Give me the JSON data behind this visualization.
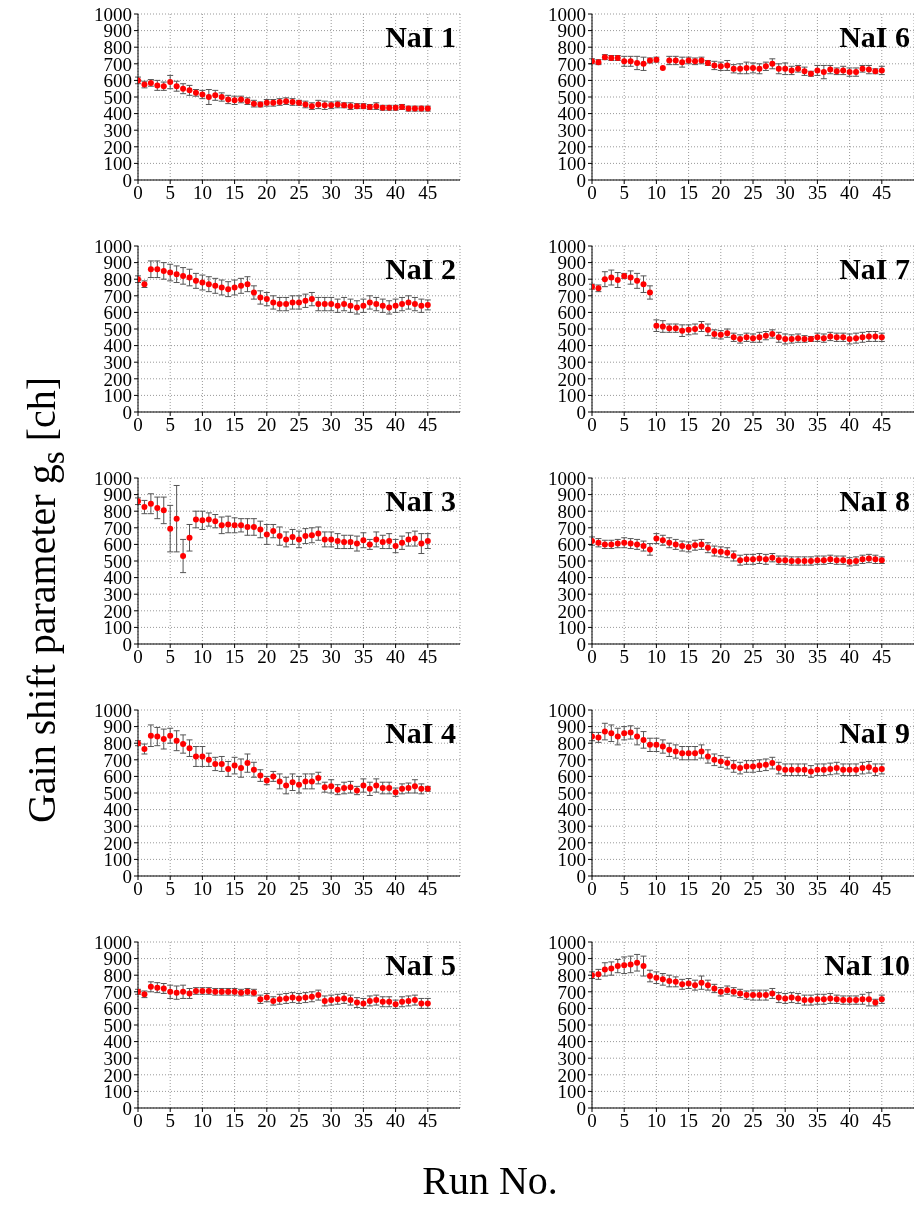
{
  "chart_data": [
    {
      "type": "scatter",
      "title": "NaI 1",
      "ylabel": "Gain shift parameter g$_{s}$ [ch]",
      "xlabel": "Run No.",
      "x": [
        0,
        1,
        2,
        3,
        4,
        5,
        6,
        7,
        8,
        9,
        10,
        11,
        12,
        13,
        14,
        15,
        16,
        17,
        18,
        19,
        20,
        21,
        22,
        23,
        24,
        25,
        26,
        27,
        28,
        29,
        30,
        31,
        32,
        33,
        34,
        35,
        36,
        37,
        38,
        39,
        40,
        41,
        42,
        43,
        44,
        45
      ],
      "xlim": [
        0,
        50
      ],
      "xticks": [
        0,
        5,
        10,
        15,
        20,
        25,
        30,
        35,
        40,
        45
      ],
      "ylim": [
        0,
        1000
      ],
      "yticks": [
        0,
        100,
        200,
        300,
        400,
        500,
        600,
        700,
        800,
        900,
        1000
      ],
      "grid": true,
      "marker": "circle",
      "series": [
        {
          "color": "#ff0000",
          "values": [
            600,
            575,
            585,
            570,
            565,
            590,
            565,
            550,
            540,
            525,
            515,
            500,
            510,
            500,
            485,
            480,
            485,
            475,
            460,
            455,
            465,
            465,
            470,
            475,
            470,
            465,
            455,
            445,
            455,
            450,
            450,
            455,
            450,
            445,
            445,
            445,
            440,
            445,
            435,
            435,
            435,
            440,
            430,
            430,
            430,
            430
          ],
          "errors": [
            20,
            20,
            20,
            30,
            25,
            40,
            30,
            30,
            30,
            20,
            25,
            45,
            30,
            25,
            25,
            25,
            20,
            20,
            20,
            15,
            20,
            20,
            20,
            20,
            20,
            15,
            20,
            20,
            25,
            25,
            20,
            20,
            15,
            20,
            15,
            15,
            15,
            20,
            15,
            15,
            15,
            15,
            15,
            15,
            15,
            15
          ]
        }
      ]
    },
    {
      "type": "scatter",
      "title": "NaI 6",
      "x": [
        0,
        1,
        2,
        3,
        4,
        5,
        6,
        7,
        8,
        9,
        10,
        11,
        12,
        13,
        14,
        15,
        16,
        17,
        18,
        19,
        20,
        21,
        22,
        23,
        24,
        25,
        26,
        27,
        28,
        29,
        30,
        31,
        32,
        33,
        34,
        35,
        36,
        37,
        38,
        39,
        40,
        41,
        42,
        43,
        44,
        45
      ],
      "xlim": [
        0,
        50
      ],
      "xticks": [
        0,
        5,
        10,
        15,
        20,
        25,
        30,
        35,
        40,
        45
      ],
      "ylim": [
        0,
        1000
      ],
      "yticks": [
        0,
        100,
        200,
        300,
        400,
        500,
        600,
        700,
        800,
        900,
        1000
      ],
      "grid": true,
      "marker": "circle",
      "series": [
        {
          "color": "#ff0000",
          "values": [
            715,
            710,
            740,
            735,
            735,
            715,
            715,
            705,
            700,
            720,
            725,
            675,
            720,
            720,
            710,
            720,
            715,
            720,
            705,
            690,
            685,
            690,
            670,
            670,
            675,
            675,
            670,
            685,
            700,
            670,
            670,
            660,
            670,
            655,
            640,
            660,
            650,
            665,
            655,
            660,
            650,
            650,
            670,
            665,
            655,
            660
          ],
          "errors": [
            15,
            15,
            15,
            15,
            15,
            30,
            30,
            40,
            40,
            15,
            15,
            null,
            25,
            25,
            30,
            20,
            20,
            20,
            15,
            25,
            25,
            30,
            25,
            30,
            35,
            30,
            30,
            25,
            30,
            30,
            35,
            25,
            20,
            25,
            15,
            30,
            40,
            25,
            20,
            25,
            25,
            25,
            20,
            25,
            15,
            25
          ]
        }
      ]
    },
    {
      "type": "scatter",
      "title": "NaI 2",
      "x": [
        0,
        1,
        2,
        3,
        4,
        5,
        6,
        7,
        8,
        9,
        10,
        11,
        12,
        13,
        14,
        15,
        16,
        17,
        18,
        19,
        20,
        21,
        22,
        23,
        24,
        25,
        26,
        27,
        28,
        29,
        30,
        31,
        32,
        33,
        34,
        35,
        36,
        37,
        38,
        39,
        40,
        41,
        42,
        43,
        44,
        45
      ],
      "xlim": [
        0,
        50
      ],
      "xticks": [
        0,
        5,
        10,
        15,
        20,
        25,
        30,
        35,
        40,
        45
      ],
      "ylim": [
        0,
        1000
      ],
      "yticks": [
        0,
        100,
        200,
        300,
        400,
        500,
        600,
        700,
        800,
        900,
        1000
      ],
      "grid": true,
      "marker": "circle",
      "series": [
        {
          "color": "#ff0000",
          "values": [
            800,
            770,
            860,
            860,
            850,
            840,
            830,
            820,
            810,
            790,
            780,
            770,
            760,
            750,
            740,
            750,
            760,
            770,
            720,
            690,
            680,
            660,
            650,
            650,
            660,
            660,
            670,
            680,
            650,
            650,
            650,
            640,
            650,
            640,
            630,
            640,
            660,
            650,
            640,
            630,
            640,
            650,
            660,
            650,
            640,
            645
          ],
          "errors": [
            20,
            20,
            50,
            50,
            50,
            50,
            50,
            50,
            50,
            45,
            45,
            45,
            45,
            45,
            45,
            45,
            45,
            45,
            40,
            40,
            40,
            40,
            40,
            40,
            40,
            40,
            40,
            40,
            40,
            40,
            40,
            40,
            40,
            40,
            40,
            40,
            40,
            40,
            40,
            40,
            40,
            40,
            40,
            40,
            40,
            30
          ]
        }
      ]
    },
    {
      "type": "scatter",
      "title": "NaI 7",
      "x": [
        0,
        1,
        2,
        3,
        4,
        5,
        6,
        7,
        8,
        9,
        10,
        11,
        12,
        13,
        14,
        15,
        16,
        17,
        18,
        19,
        20,
        21,
        22,
        23,
        24,
        25,
        26,
        27,
        28,
        29,
        30,
        31,
        32,
        33,
        34,
        35,
        36,
        37,
        38,
        39,
        40,
        41,
        42,
        43,
        44,
        45
      ],
      "xlim": [
        0,
        50
      ],
      "xticks": [
        0,
        5,
        10,
        15,
        20,
        25,
        30,
        35,
        40,
        45
      ],
      "ylim": [
        0,
        1000
      ],
      "yticks": [
        0,
        100,
        200,
        300,
        400,
        500,
        600,
        700,
        800,
        900,
        1000
      ],
      "grid": true,
      "marker": "circle",
      "series": [
        {
          "color": "#ff0000",
          "values": [
            755,
            745,
            800,
            810,
            795,
            820,
            810,
            790,
            770,
            720,
            520,
            515,
            505,
            505,
            490,
            495,
            500,
            515,
            495,
            470,
            465,
            475,
            450,
            440,
            450,
            445,
            450,
            460,
            470,
            450,
            440,
            440,
            445,
            440,
            440,
            450,
            445,
            455,
            450,
            450,
            440,
            445,
            450,
            455,
            455,
            450
          ],
          "errors": [
            15,
            20,
            45,
            45,
            45,
            15,
            40,
            45,
            50,
            40,
            35,
            35,
            25,
            25,
            35,
            30,
            30,
            30,
            35,
            25,
            25,
            25,
            25,
            25,
            25,
            25,
            30,
            25,
            25,
            30,
            30,
            25,
            25,
            20,
            15,
            25,
            25,
            25,
            25,
            25,
            30,
            30,
            30,
            30,
            30,
            25
          ]
        }
      ]
    },
    {
      "type": "scatter",
      "title": "NaI 3",
      "x": [
        0,
        1,
        2,
        3,
        4,
        5,
        6,
        7,
        8,
        9,
        10,
        11,
        12,
        13,
        14,
        15,
        16,
        17,
        18,
        19,
        20,
        21,
        22,
        23,
        24,
        25,
        26,
        27,
        28,
        29,
        30,
        31,
        32,
        33,
        34,
        35,
        36,
        37,
        38,
        39,
        40,
        41,
        42,
        43,
        44,
        45
      ],
      "xlim": [
        0,
        50
      ],
      "xticks": [
        0,
        5,
        10,
        15,
        20,
        25,
        30,
        35,
        40,
        45
      ],
      "ylim": [
        0,
        1000
      ],
      "yticks": [
        0,
        100,
        200,
        300,
        400,
        500,
        600,
        700,
        800,
        900,
        1000
      ],
      "grid": true,
      "marker": "circle",
      "series": [
        {
          "color": "#ff0000",
          "values": [
            860,
            825,
            845,
            820,
            805,
            695,
            755,
            530,
            640,
            750,
            745,
            750,
            740,
            715,
            720,
            715,
            715,
            705,
            705,
            690,
            660,
            680,
            650,
            630,
            645,
            630,
            650,
            655,
            665,
            630,
            630,
            620,
            615,
            615,
            605,
            625,
            600,
            630,
            615,
            620,
            590,
            610,
            630,
            635,
            605,
            620
          ],
          "errors": [
            20,
            40,
            60,
            65,
            80,
            140,
            200,
            100,
            80,
            50,
            55,
            40,
            40,
            50,
            50,
            45,
            40,
            50,
            50,
            50,
            60,
            40,
            55,
            45,
            45,
            50,
            45,
            45,
            40,
            45,
            45,
            45,
            40,
            40,
            45,
            45,
            30,
            45,
            40,
            45,
            40,
            40,
            40,
            45,
            60,
            45
          ]
        }
      ]
    },
    {
      "type": "scatter",
      "title": "NaI 8",
      "x": [
        0,
        1,
        2,
        3,
        4,
        5,
        6,
        7,
        8,
        9,
        10,
        11,
        12,
        13,
        14,
        15,
        16,
        17,
        18,
        19,
        20,
        21,
        22,
        23,
        24,
        25,
        26,
        27,
        28,
        29,
        30,
        31,
        32,
        33,
        34,
        35,
        36,
        37,
        38,
        39,
        40,
        41,
        42,
        43,
        44,
        45
      ],
      "xlim": [
        0,
        50
      ],
      "xticks": [
        0,
        5,
        10,
        15,
        20,
        25,
        30,
        35,
        40,
        45
      ],
      "ylim": [
        0,
        1000
      ],
      "yticks": [
        0,
        100,
        200,
        300,
        400,
        500,
        600,
        700,
        800,
        900,
        1000
      ],
      "grid": true,
      "marker": "circle",
      "series": [
        {
          "color": "#ff0000",
          "values": [
            620,
            610,
            600,
            600,
            605,
            610,
            605,
            600,
            590,
            570,
            635,
            625,
            610,
            600,
            590,
            585,
            595,
            600,
            580,
            560,
            555,
            550,
            530,
            505,
            510,
            510,
            515,
            510,
            520,
            505,
            505,
            500,
            500,
            500,
            500,
            505,
            505,
            510,
            505,
            505,
            495,
            500,
            510,
            515,
            510,
            505
          ],
          "errors": [
            25,
            25,
            25,
            25,
            25,
            30,
            30,
            30,
            30,
            35,
            30,
            30,
            30,
            30,
            30,
            30,
            30,
            30,
            30,
            30,
            30,
            30,
            30,
            30,
            30,
            30,
            30,
            30,
            25,
            25,
            25,
            25,
            25,
            25,
            25,
            25,
            25,
            25,
            25,
            25,
            25,
            25,
            25,
            25,
            25,
            20
          ]
        }
      ]
    },
    {
      "type": "scatter",
      "title": "NaI 4",
      "x": [
        0,
        1,
        2,
        3,
        4,
        5,
        6,
        7,
        8,
        9,
        10,
        11,
        12,
        13,
        14,
        15,
        16,
        17,
        18,
        19,
        20,
        21,
        22,
        23,
        24,
        25,
        26,
        27,
        28,
        29,
        30,
        31,
        32,
        33,
        34,
        35,
        36,
        37,
        38,
        39,
        40,
        41,
        42,
        43,
        44,
        45
      ],
      "xlim": [
        0,
        50
      ],
      "xticks": [
        0,
        5,
        10,
        15,
        20,
        25,
        30,
        35,
        40,
        45
      ],
      "ylim": [
        0,
        1000
      ],
      "yticks": [
        0,
        100,
        200,
        300,
        400,
        500,
        600,
        700,
        800,
        900,
        1000
      ],
      "grid": true,
      "marker": "circle",
      "series": [
        {
          "color": "#ff0000",
          "values": [
            800,
            765,
            845,
            840,
            825,
            845,
            815,
            795,
            770,
            720,
            720,
            700,
            675,
            675,
            645,
            665,
            650,
            680,
            640,
            605,
            575,
            600,
            570,
            545,
            565,
            550,
            570,
            570,
            590,
            535,
            540,
            520,
            530,
            535,
            515,
            545,
            525,
            545,
            530,
            530,
            505,
            525,
            530,
            540,
            525,
            525
          ],
          "errors": [
            15,
            30,
            65,
            55,
            60,
            45,
            60,
            55,
            50,
            60,
            60,
            40,
            40,
            45,
            45,
            50,
            55,
            55,
            45,
            35,
            25,
            30,
            45,
            50,
            50,
            50,
            45,
            45,
            35,
            30,
            40,
            30,
            35,
            35,
            25,
            40,
            40,
            40,
            35,
            35,
            25,
            30,
            30,
            40,
            30,
            15
          ]
        }
      ]
    },
    {
      "type": "scatter",
      "title": "NaI 9",
      "x": [
        0,
        1,
        2,
        3,
        4,
        5,
        6,
        7,
        8,
        9,
        10,
        11,
        12,
        13,
        14,
        15,
        16,
        17,
        18,
        19,
        20,
        21,
        22,
        23,
        24,
        25,
        26,
        27,
        28,
        29,
        30,
        31,
        32,
        33,
        34,
        35,
        36,
        37,
        38,
        39,
        40,
        41,
        42,
        43,
        44,
        45
      ],
      "xlim": [
        0,
        50
      ],
      "xticks": [
        0,
        5,
        10,
        15,
        20,
        25,
        30,
        35,
        40,
        45
      ],
      "ylim": [
        0,
        1000
      ],
      "yticks": [
        0,
        100,
        200,
        300,
        400,
        500,
        600,
        700,
        800,
        900,
        1000
      ],
      "grid": true,
      "marker": "circle",
      "series": [
        {
          "color": "#ff0000",
          "values": [
            840,
            835,
            870,
            860,
            840,
            860,
            865,
            840,
            820,
            790,
            790,
            780,
            760,
            750,
            740,
            740,
            740,
            750,
            720,
            700,
            690,
            680,
            660,
            650,
            660,
            660,
            665,
            670,
            680,
            650,
            640,
            640,
            640,
            640,
            630,
            640,
            640,
            645,
            650,
            640,
            640,
            640,
            650,
            655,
            640,
            645
          ],
          "errors": [
            25,
            30,
            50,
            50,
            50,
            40,
            40,
            50,
            50,
            40,
            40,
            40,
            40,
            40,
            40,
            40,
            40,
            40,
            40,
            35,
            35,
            35,
            35,
            35,
            35,
            35,
            35,
            35,
            35,
            35,
            35,
            35,
            35,
            35,
            35,
            35,
            35,
            35,
            35,
            35,
            35,
            35,
            35,
            35,
            35,
            30
          ]
        }
      ]
    },
    {
      "type": "scatter",
      "title": "NaI 5",
      "x": [
        0,
        1,
        2,
        3,
        4,
        5,
        6,
        7,
        8,
        9,
        10,
        11,
        12,
        13,
        14,
        15,
        16,
        17,
        18,
        19,
        20,
        21,
        22,
        23,
        24,
        25,
        26,
        27,
        28,
        29,
        30,
        31,
        32,
        33,
        34,
        35,
        36,
        37,
        38,
        39,
        40,
        41,
        42,
        43,
        44,
        45
      ],
      "xlim": [
        0,
        50
      ],
      "xticks": [
        0,
        5,
        10,
        15,
        20,
        25,
        30,
        35,
        40,
        45
      ],
      "ylim": [
        0,
        1000
      ],
      "yticks": [
        0,
        100,
        200,
        300,
        400,
        500,
        600,
        700,
        800,
        900,
        1000
      ],
      "grid": true,
      "marker": "circle",
      "series": [
        {
          "color": "#ff0000",
          "values": [
            700,
            685,
            730,
            725,
            720,
            700,
            695,
            700,
            690,
            705,
            705,
            705,
            700,
            700,
            700,
            700,
            695,
            700,
            695,
            655,
            665,
            645,
            655,
            660,
            665,
            660,
            665,
            670,
            680,
            645,
            650,
            655,
            660,
            650,
            635,
            630,
            645,
            650,
            640,
            640,
            625,
            640,
            645,
            650,
            630,
            630
          ],
          "errors": [
            15,
            20,
            30,
            30,
            30,
            40,
            40,
            40,
            30,
            20,
            20,
            20,
            20,
            20,
            20,
            20,
            20,
            20,
            20,
            25,
            25,
            25,
            30,
            30,
            30,
            30,
            30,
            30,
            30,
            30,
            30,
            30,
            30,
            30,
            30,
            30,
            30,
            30,
            30,
            30,
            25,
            30,
            30,
            30,
            30,
            30
          ]
        }
      ]
    },
    {
      "type": "scatter",
      "title": "NaI 10",
      "x": [
        0,
        1,
        2,
        3,
        4,
        5,
        6,
        7,
        8,
        9,
        10,
        11,
        12,
        13,
        14,
        15,
        16,
        17,
        18,
        19,
        20,
        21,
        22,
        23,
        24,
        25,
        26,
        27,
        28,
        29,
        30,
        31,
        32,
        33,
        34,
        35,
        36,
        37,
        38,
        39,
        40,
        41,
        42,
        43,
        44,
        45
      ],
      "xlim": [
        0,
        50
      ],
      "xticks": [
        0,
        5,
        10,
        15,
        20,
        25,
        30,
        35,
        40,
        45
      ],
      "ylim": [
        0,
        1000
      ],
      "yticks": [
        0,
        100,
        200,
        300,
        400,
        500,
        600,
        700,
        800,
        900,
        1000
      ],
      "grid": true,
      "marker": "circle",
      "series": [
        {
          "color": "#ff0000",
          "values": [
            800,
            805,
            835,
            840,
            855,
            860,
            865,
            875,
            855,
            795,
            785,
            775,
            765,
            760,
            745,
            750,
            740,
            755,
            740,
            720,
            700,
            710,
            700,
            690,
            680,
            680,
            680,
            680,
            690,
            665,
            660,
            665,
            660,
            650,
            650,
            655,
            655,
            660,
            655,
            650,
            650,
            650,
            655,
            655,
            635,
            655
          ],
          "errors": [
            20,
            30,
            40,
            40,
            40,
            50,
            50,
            50,
            60,
            35,
            35,
            35,
            35,
            30,
            30,
            30,
            30,
            40,
            30,
            25,
            25,
            25,
            25,
            25,
            25,
            30,
            30,
            30,
            30,
            30,
            30,
            30,
            30,
            30,
            30,
            30,
            30,
            30,
            25,
            25,
            25,
            25,
            30,
            40,
            20,
            25
          ]
        }
      ]
    }
  ]
}
